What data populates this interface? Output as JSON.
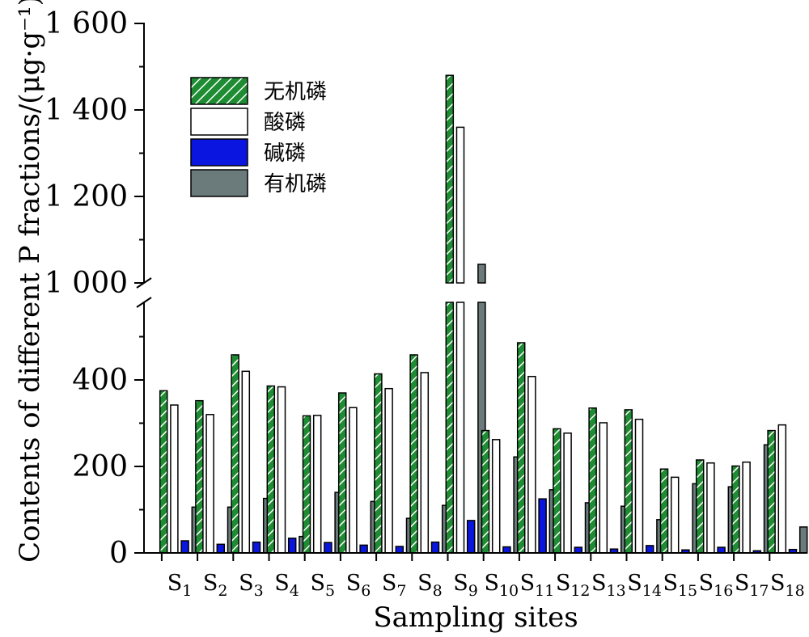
{
  "chart_data": {
    "type": "bar",
    "xlabel": "Sampling sites",
    "ylabel": "Contents of different P fractions/(μg·g⁻¹)",
    "y_axis_break": [
      1000,
      1000
    ],
    "lower_ylim": [
      0,
      630
    ],
    "upper_ylim": [
      1000,
      1600
    ],
    "lower_ticks": [
      0,
      200,
      400
    ],
    "upper_ticks": [
      1000,
      1200,
      1400,
      1600
    ],
    "upper_tick_labels": [
      "1 000",
      "1 200",
      "1 400",
      "1 600"
    ],
    "categories": [
      "S1",
      "S2",
      "S3",
      "S4",
      "S5",
      "S6",
      "S7",
      "S8",
      "S9",
      "S10",
      "S11",
      "S12",
      "S13",
      "S14",
      "S15",
      "S16",
      "S17",
      "S18"
    ],
    "site_labels": [
      {
        "base": "S",
        "sub": "1"
      },
      {
        "base": "S",
        "sub": "2"
      },
      {
        "base": "S",
        "sub": "3"
      },
      {
        "base": "S",
        "sub": "4"
      },
      {
        "base": "S",
        "sub": "5"
      },
      {
        "base": "S",
        "sub": "6"
      },
      {
        "base": "S",
        "sub": "7"
      },
      {
        "base": "S",
        "sub": "8"
      },
      {
        "base": "S",
        "sub": "9"
      },
      {
        "base": "S",
        "sub": "10"
      },
      {
        "base": "S",
        "sub": "11"
      },
      {
        "base": "S",
        "sub": "12"
      },
      {
        "base": "S",
        "sub": "13"
      },
      {
        "base": "S",
        "sub": "14"
      },
      {
        "base": "S",
        "sub": "15"
      },
      {
        "base": "S",
        "sub": "16"
      },
      {
        "base": "S",
        "sub": "17"
      },
      {
        "base": "S",
        "sub": "18"
      }
    ],
    "legend_position": "top-left",
    "series": [
      {
        "name": "无机磷",
        "fill": "#1e8c32",
        "pattern": "hatch",
        "values": [
          375,
          352,
          458,
          386,
          317,
          370,
          414,
          458,
          1480,
          283,
          486,
          287,
          335,
          331,
          194,
          215,
          201,
          283
        ]
      },
      {
        "name": "酸磷",
        "fill": "#ffffff",
        "pattern": "none",
        "values": [
          342,
          320,
          420,
          384,
          318,
          336,
          380,
          417,
          1360,
          262,
          408,
          277,
          301,
          309,
          175,
          208,
          210,
          296
        ]
      },
      {
        "name": "碱磷",
        "fill": "#0a16e0",
        "pattern": "none",
        "values": [
          28,
          20,
          25,
          34,
          24,
          18,
          15,
          25,
          75,
          14,
          125,
          13,
          9,
          17,
          7,
          13,
          5,
          8
        ]
      },
      {
        "name": "有机磷",
        "fill": "#6b7b7b",
        "pattern": "none",
        "values": [
          106,
          106,
          126,
          38,
          140,
          119,
          80,
          110,
          1043,
          222,
          146,
          116,
          108,
          77,
          160,
          153,
          250,
          60
        ]
      }
    ]
  }
}
